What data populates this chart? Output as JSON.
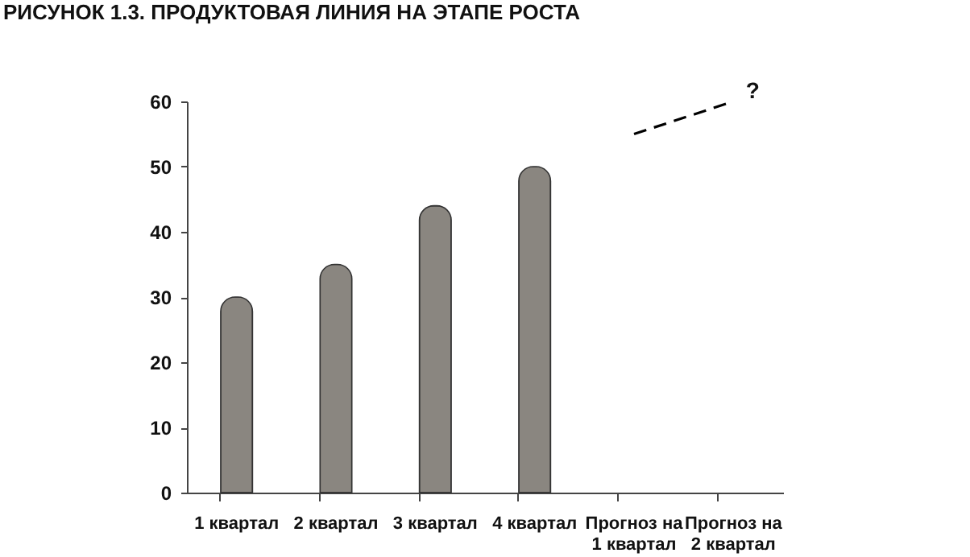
{
  "chart_data": {
    "type": "bar",
    "title": "РИСУНОК 1.3. ПРОДУКТОВАЯ ЛИНИЯ НА ЭТАПЕ РОСТА",
    "categories": [
      "1 квартал",
      "2 квартал",
      "3 квартал",
      "4 квартал",
      "Прогноз на 1 квартал",
      "Прогноз на 2 квартал"
    ],
    "series": [
      {
        "color": "#8a8680",
        "values": [
          30,
          35,
          44,
          50,
          null,
          null
        ]
      },
      {
        "type": "line",
        "color": "#000000",
        "line_style": "dashed",
        "marker": "none",
        "values": [
          null,
          null,
          null,
          null,
          55,
          60
        ]
      }
    ],
    "ylim": [
      0,
      60
    ],
    "yticks": [
      0,
      10,
      20,
      30,
      40,
      50,
      60
    ],
    "annotations": [
      {
        "text": "?",
        "x": "Прогноз на 2 квартал",
        "y": 60
      }
    ]
  }
}
